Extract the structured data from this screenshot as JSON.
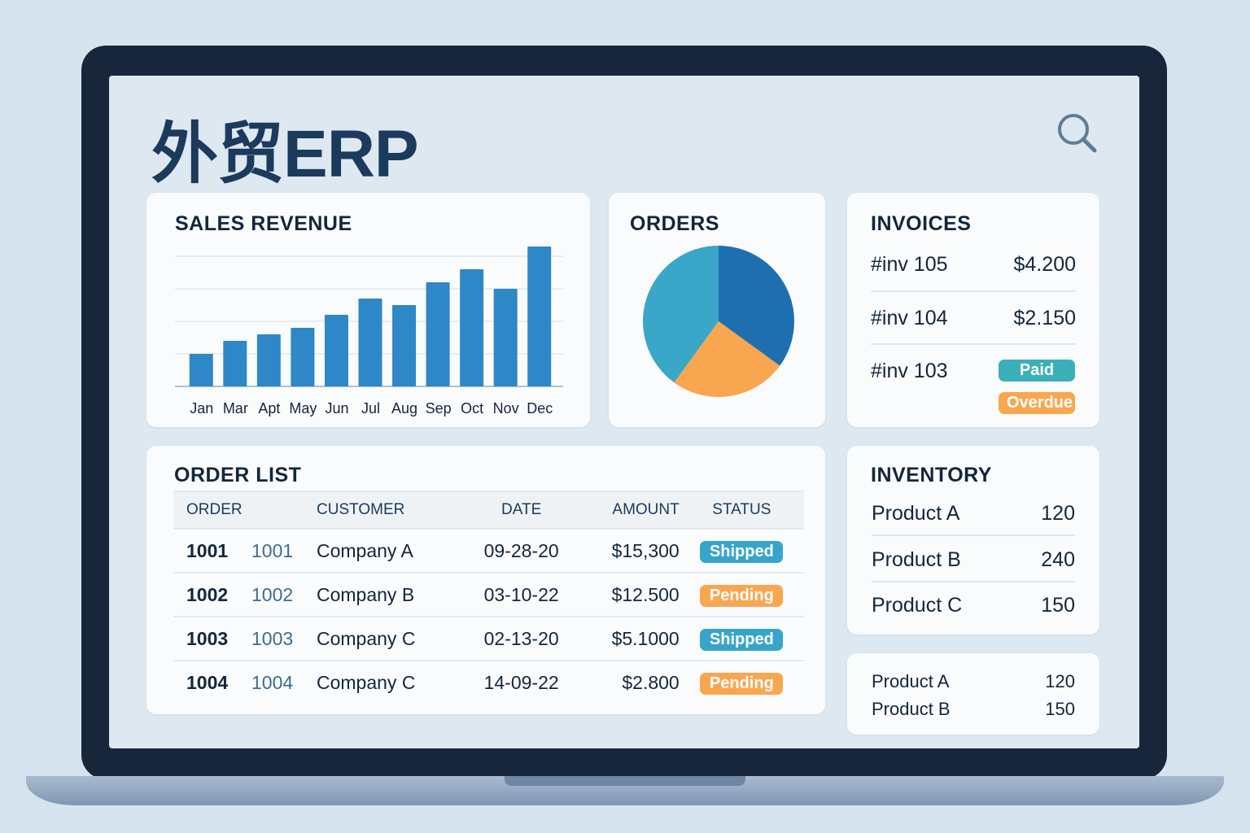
{
  "app": {
    "title": "外贸ERP",
    "search_icon": "search-icon"
  },
  "colors": {
    "bar": "#2e87c6",
    "pie_dark": "#1f6fb0",
    "pie_teal": "#3aa6c8",
    "pie_orange": "#f9a650",
    "paid": "#3cb0b8",
    "overdue": "#f9a650",
    "shipped": "#37a5c9",
    "pending": "#f9a650"
  },
  "sales": {
    "title": "SALES REVENUE"
  },
  "chart_data": [
    {
      "type": "bar",
      "title": "SALES REVENUE",
      "categories": [
        "Jan",
        "Mar",
        "Apt",
        "May",
        "Jun",
        "Jul",
        "Aug",
        "Sep",
        "Oct",
        "Nov",
        "Dec"
      ],
      "values": [
        1.0,
        1.4,
        1.6,
        1.8,
        2.2,
        2.7,
        2.5,
        3.2,
        3.6,
        3.0,
        4.3
      ],
      "ylim": [
        0,
        4.5
      ],
      "grid": true
    },
    {
      "type": "pie",
      "title": "ORDERS",
      "values": [
        35,
        25,
        40
      ],
      "colors": [
        "#1f6fb0",
        "#f9a650",
        "#3aa6c8"
      ]
    }
  ],
  "orders": {
    "title": "ORDERS"
  },
  "invoices": {
    "title": "INVOICES",
    "items": [
      {
        "id": "#inv 105",
        "amount": "$4.200"
      },
      {
        "id": "#inv 104",
        "amount": "$2.150"
      },
      {
        "id": "#inv 103",
        "badges": [
          "Paid",
          "Overdue"
        ]
      }
    ]
  },
  "order_list": {
    "title": "ORDER LIST",
    "headers": [
      "ORDER",
      "CUSTOMER",
      "DATE",
      "AMOUNT",
      "STATUS"
    ],
    "rows": [
      {
        "order": "1001",
        "ref": "1001",
        "customer": "Company A",
        "date": "09-28-20",
        "amount": "$15,300",
        "status": "Shipped"
      },
      {
        "order": "1002",
        "ref": "1002",
        "customer": "Company B",
        "date": "03-10-22",
        "amount": "$12.500",
        "status": "Pending"
      },
      {
        "order": "1003",
        "ref": "1003",
        "customer": "Company C",
        "date": "02-13-20",
        "amount": "$5.1000",
        "status": "Shipped"
      },
      {
        "order": "1004",
        "ref": "1004",
        "customer": "Company C",
        "date": "14-09-22",
        "amount": "$2.800",
        "status": "Pending"
      }
    ]
  },
  "inventory": {
    "title": "INVENTORY",
    "items": [
      {
        "name": "Product A",
        "qty": "120"
      },
      {
        "name": "Product B",
        "qty": "240"
      },
      {
        "name": "Product C",
        "qty": "150"
      }
    ]
  },
  "inventory2": {
    "items": [
      {
        "name": "Product A",
        "qty": "120"
      },
      {
        "name": "Product B",
        "qty": "150"
      }
    ]
  }
}
